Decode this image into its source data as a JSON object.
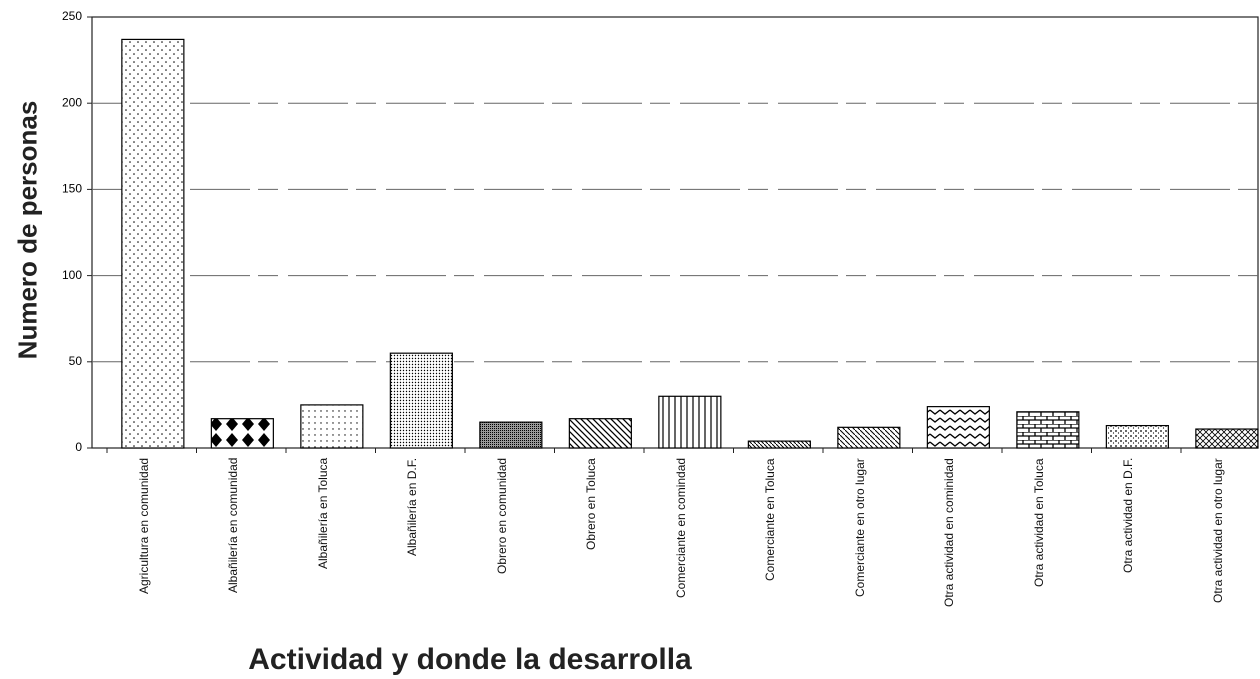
{
  "chart_data": {
    "type": "bar",
    "x_label": "Actividad y donde la desarrolla",
    "y_label": "Numero de personas",
    "categories": [
      "Agricultura en comunidad",
      "Albañilería en comunidad",
      "Albañilería en Toluca",
      "Albañilería en D.F.",
      "Obrero en comunidad",
      "Obrero en Toluca",
      "Comerciante en comindad",
      "Comerciante en Toluca",
      "Comerciante en otro lugar",
      "Otra actividad en cominidad",
      "Otra actividad en Toluca",
      "Otra actividad en D.F.",
      "Otra actividad en otro lugar"
    ],
    "values": [
      237,
      17,
      25,
      55,
      15,
      17,
      30,
      4,
      12,
      24,
      21,
      13,
      11
    ],
    "color": "#000000",
    "ylim": [
      0,
      250
    ],
    "yticks": [
      0,
      50,
      100,
      150,
      200,
      250
    ],
    "grid": true
  }
}
